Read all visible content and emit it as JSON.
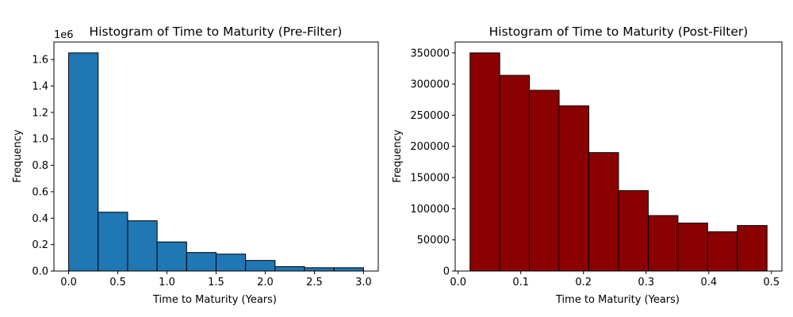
{
  "chart_data": [
    {
      "type": "bar",
      "title": "Histogram of Time to Maturity (Pre-Filter)",
      "xlabel": "Time to Maturity (Years)",
      "ylabel": "Frequency",
      "y_offset_label": "1e6",
      "bar_color": "#1f77b4",
      "edge_color": "#000000",
      "bin_edges": [
        0.0,
        0.3,
        0.6,
        0.9,
        1.2,
        1.5,
        1.8,
        2.1,
        2.4,
        2.7,
        3.0
      ],
      "values": [
        1650000,
        445000,
        380000,
        220000,
        140000,
        128000,
        80000,
        33000,
        25000,
        25000
      ],
      "xlim": [
        -0.15,
        3.15
      ],
      "ylim": [
        0,
        1732500
      ],
      "xticks": [
        0.0,
        0.5,
        1.0,
        1.5,
        2.0,
        2.5,
        3.0
      ],
      "xtick_labels": [
        "0.0",
        "0.5",
        "1.0",
        "1.5",
        "2.0",
        "2.5",
        "3.0"
      ],
      "yticks": [
        0,
        200000,
        400000,
        600000,
        800000,
        1000000,
        1200000,
        1400000,
        1600000
      ],
      "ytick_labels": [
        "0.0",
        "0.2",
        "0.4",
        "0.6",
        "0.8",
        "1.0",
        "1.2",
        "1.4",
        "1.6"
      ],
      "grid": false
    },
    {
      "type": "bar",
      "title": "Histogram of Time to Maturity (Post-Filter)",
      "xlabel": "Time to Maturity (Years)",
      "ylabel": "Frequency",
      "y_offset_label": "",
      "bar_color": "#8b0000",
      "edge_color": "#000000",
      "bin_edges": [
        0.019,
        0.0664,
        0.1138,
        0.1612,
        0.2086,
        0.256,
        0.3034,
        0.3508,
        0.3982,
        0.4456,
        0.493
      ],
      "values": [
        350000,
        314000,
        290000,
        265000,
        190000,
        129000,
        89000,
        77000,
        63000,
        73000
      ],
      "xlim": [
        -0.0047,
        0.5167
      ],
      "ylim": [
        0,
        367500
      ],
      "xticks": [
        0.0,
        0.1,
        0.2,
        0.3,
        0.4,
        0.5
      ],
      "xtick_labels": [
        "0.0",
        "0.1",
        "0.2",
        "0.3",
        "0.4",
        "0.5"
      ],
      "yticks": [
        0,
        50000,
        100000,
        150000,
        200000,
        250000,
        300000,
        350000
      ],
      "ytick_labels": [
        "0",
        "50000",
        "100000",
        "150000",
        "200000",
        "250000",
        "300000",
        "350000"
      ],
      "grid": false
    }
  ]
}
